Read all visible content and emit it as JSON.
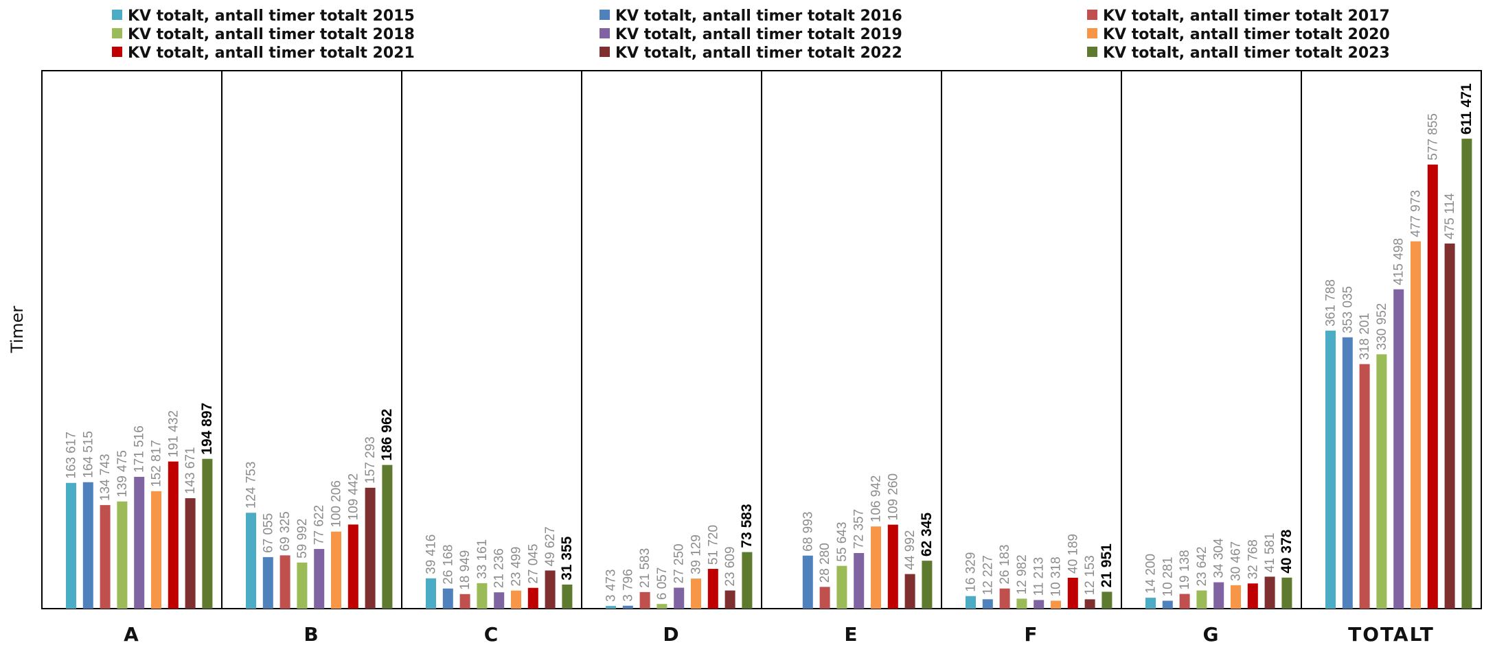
{
  "chart_data": {
    "type": "bar",
    "ylabel": "Timer",
    "xlabel": "",
    "ylim": [
      0,
      700000
    ],
    "grid": false,
    "legend_position": "top",
    "categories": [
      "A",
      "B",
      "C",
      "D",
      "E",
      "F",
      "G",
      "TOTALT"
    ],
    "series": [
      {
        "name": "KV totalt, antall timer totalt 2015",
        "color": "#4bacc6",
        "values": [
          163617,
          124753,
          39416,
          3473,
          null,
          16329,
          14200,
          361788
        ],
        "labels": [
          "163 617",
          "124 753",
          "39 416",
          "3 473",
          "",
          "16 329",
          "14 200",
          "361 788"
        ]
      },
      {
        "name": "KV totalt, antall timer totalt 2016",
        "color": "#4f81bd",
        "values": [
          164515,
          67055,
          26168,
          3796,
          68993,
          12227,
          10281,
          353035
        ],
        "labels": [
          "164 515",
          "67 055",
          "26 168",
          "3 796",
          "68 993",
          "12 227",
          "10 281",
          "353 035"
        ]
      },
      {
        "name": "KV totalt, antall timer totalt 2017",
        "color": "#c0504d",
        "values": [
          134743,
          69325,
          18949,
          21583,
          28280,
          26183,
          19138,
          318201
        ],
        "labels": [
          "134 743",
          "69 325",
          "18 949",
          "21 583",
          "28 280",
          "26 183",
          "19 138",
          "318 201"
        ]
      },
      {
        "name": "KV totalt, antall timer totalt 2018",
        "color": "#9bbb59",
        "values": [
          139475,
          59992,
          33161,
          6057,
          55643,
          12982,
          23642,
          330952
        ],
        "labels": [
          "139 475",
          "59 992",
          "33 161",
          "6 057",
          "55 643",
          "12 982",
          "23 642",
          "330 952"
        ]
      },
      {
        "name": "KV totalt, antall timer totalt 2019",
        "color": "#8064a2",
        "values": [
          171516,
          77622,
          21236,
          27250,
          72357,
          11213,
          34304,
          415498
        ],
        "labels": [
          "171 516",
          "77 622",
          "21 236",
          "27 250",
          "72 357",
          "11 213",
          "34 304",
          "415 498"
        ]
      },
      {
        "name": "KV totalt, antall timer totalt 2020",
        "color": "#f79646",
        "values": [
          152817,
          100206,
          23499,
          39129,
          106942,
          10318,
          30467,
          477973
        ],
        "labels": [
          "152 817",
          "100 206",
          "23 499",
          "39 129",
          "106 942",
          "10 318",
          "30 467",
          "477 973"
        ]
      },
      {
        "name": "KV totalt, antall timer totalt 2021",
        "color": "#c00000",
        "values": [
          191432,
          109442,
          27045,
          51720,
          109260,
          40189,
          32768,
          577855
        ],
        "labels": [
          "191 432",
          "109 442",
          "27 045",
          "51 720",
          "109 260",
          "40 189",
          "32 768",
          "577 855"
        ]
      },
      {
        "name": "KV totalt, antall timer totalt 2022",
        "color": "#7f2f2f",
        "values": [
          143671,
          157293,
          49627,
          23609,
          44992,
          12153,
          41581,
          475114
        ],
        "labels": [
          "143 671",
          "157 293",
          "49 627",
          "23 609",
          "44 992",
          "12 153",
          "41 581",
          "475 114"
        ]
      },
      {
        "name": "KV totalt, antall timer totalt 2023",
        "color": "#5e7a2e",
        "values": [
          194897,
          186962,
          31355,
          73583,
          62345,
          21951,
          40378,
          611471
        ],
        "labels": [
          "194 897",
          "186 962",
          "31 355",
          "73 583",
          "62 345",
          "21 951",
          "40 378",
          "611 471"
        ]
      }
    ]
  }
}
